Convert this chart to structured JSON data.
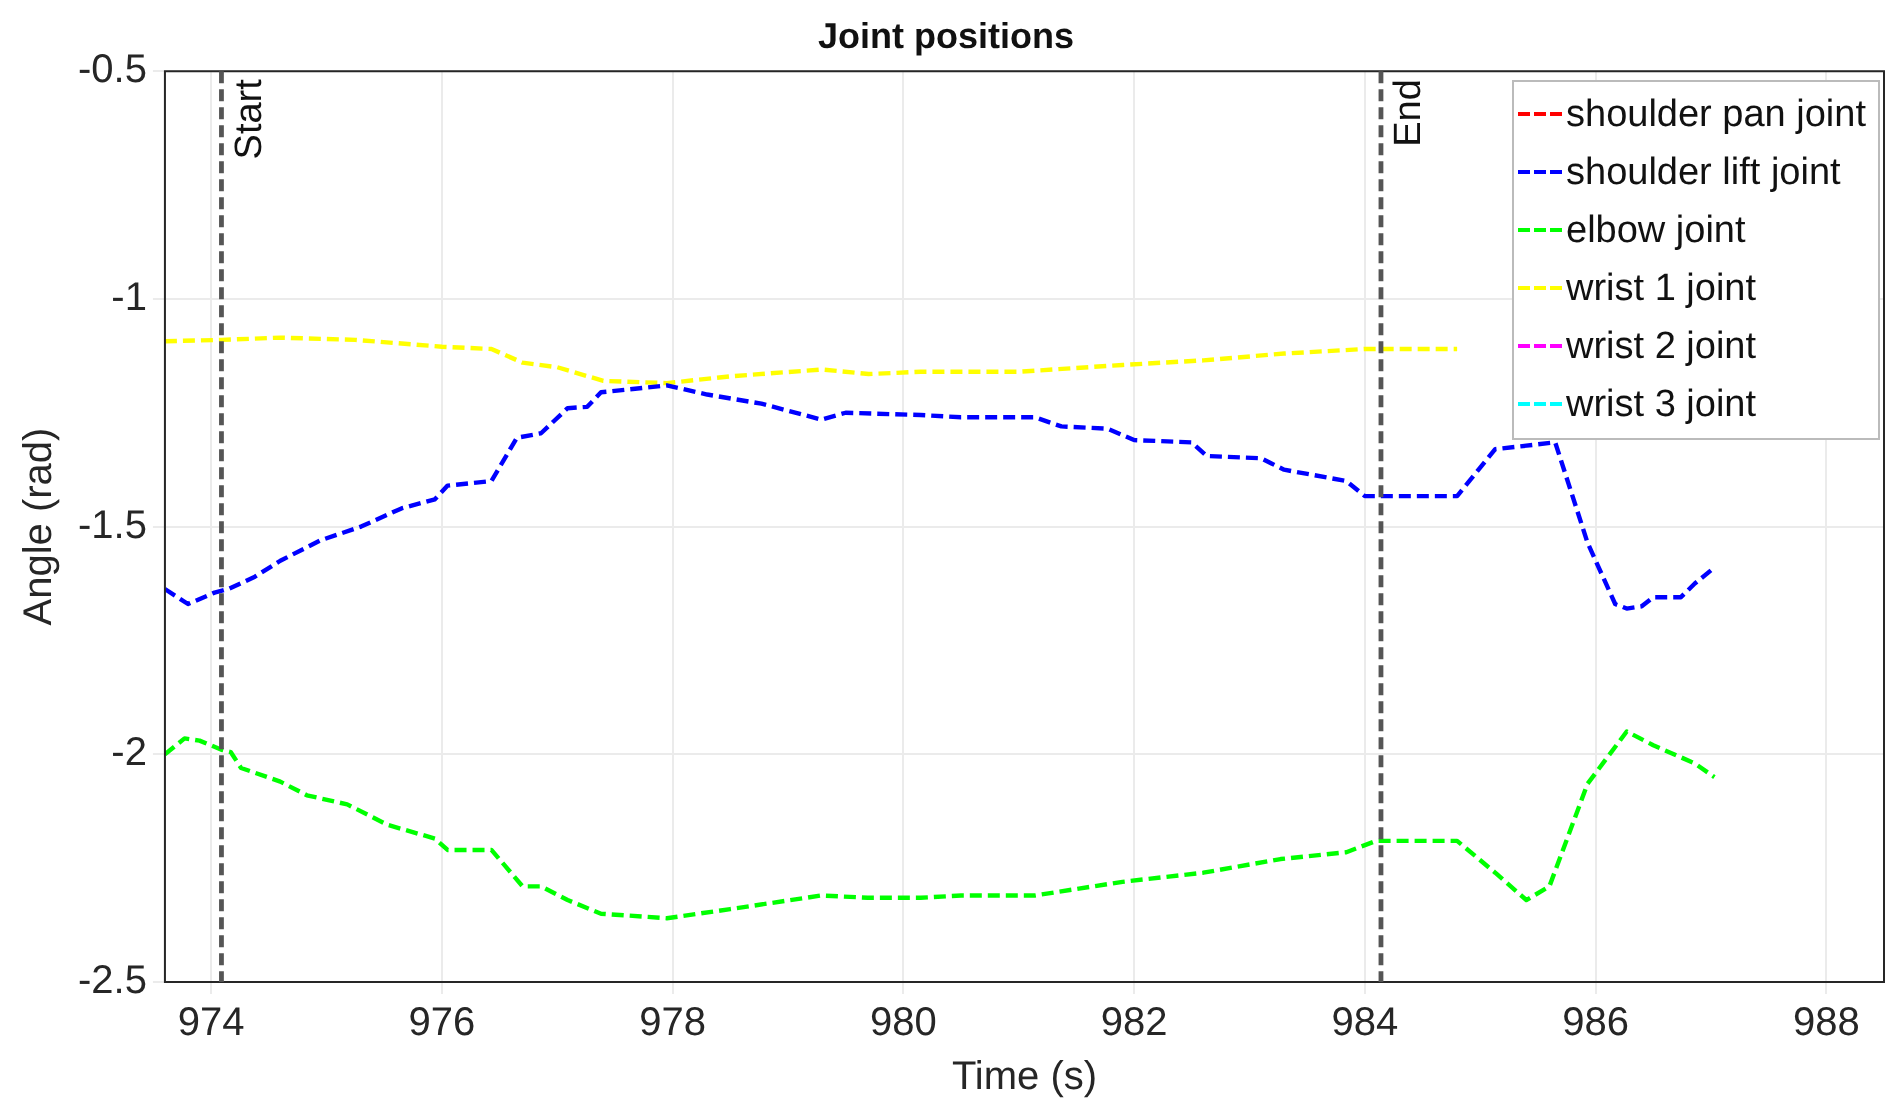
{
  "chart_data": {
    "type": "line",
    "title": "Joint positions",
    "xlabel": "Time (s)",
    "ylabel": "Angle (rad)",
    "xlim": [
      973.6,
      988.5
    ],
    "xticks": [
      974,
      976,
      978,
      980,
      982,
      984,
      986,
      988
    ],
    "ylim": [
      -2.5,
      -0.5
    ],
    "yticks": [
      -2.5,
      -2,
      -1.5,
      -1,
      -0.5
    ],
    "grid": true,
    "legend": "top right",
    "line_style": "dashed",
    "ref_lines": [
      {
        "axis": "x",
        "value": 974.09,
        "label": "Start",
        "color": "#555555",
        "line_style": "dashed"
      },
      {
        "axis": "x",
        "value": 984.14,
        "label": "End",
        "color": "#555555",
        "line_style": "dashed"
      }
    ],
    "series": [
      {
        "name": "shoulder pan joint",
        "color": "#ff0000"
      },
      {
        "name": "shoulder lift joint",
        "color": "#0000ff",
        "x": [
          973.6,
          973.8,
          974.03,
          974.15,
          974.38,
          974.6,
          974.95,
          975.3,
          975.65,
          975.94,
          976.05,
          976.43,
          976.65,
          976.86,
          977.09,
          977.26,
          977.38,
          977.95,
          978.3,
          978.77,
          979.29,
          979.5,
          980.15,
          980.5,
          981.14,
          981.37,
          981.77,
          982.0,
          982.5,
          982.63,
          983.1,
          983.3,
          983.84,
          984.0,
          984.8,
          985.13,
          985.45,
          985.65,
          985.93,
          986.17,
          986.27,
          986.4,
          986.5,
          986.74,
          986.86,
          987.03
        ],
        "values": [
          -1.637,
          -1.67,
          -1.645,
          -1.637,
          -1.61,
          -1.575,
          -1.53,
          -1.5,
          -1.46,
          -1.44,
          -1.41,
          -1.4,
          -1.305,
          -1.295,
          -1.24,
          -1.237,
          -1.205,
          -1.19,
          -1.21,
          -1.23,
          -1.265,
          -1.25,
          -1.255,
          -1.26,
          -1.26,
          -1.28,
          -1.285,
          -1.31,
          -1.315,
          -1.345,
          -1.35,
          -1.375,
          -1.4,
          -1.433,
          -1.433,
          -1.33,
          null,
          -1.315,
          -1.535,
          -1.67,
          -1.68,
          -1.675,
          -1.655,
          -1.655,
          -1.625,
          -1.59
        ]
      },
      {
        "name": "elbow joint",
        "color": "#00ff00",
        "x": [
          973.6,
          973.77,
          973.9,
          974.09,
          974.17,
          974.26,
          974.6,
          974.83,
          975.18,
          975.53,
          975.94,
          976.05,
          976.43,
          976.7,
          976.86,
          977.09,
          977.38,
          977.95,
          978.5,
          979.29,
          979.69,
          980.15,
          980.5,
          981.14,
          981.9,
          982.6,
          983.27,
          983.84,
          984.1,
          984.8,
          985.13,
          985.4,
          985.6,
          985.93,
          986.27,
          986.5,
          986.86,
          987.03
        ],
        "values": [
          -2.0,
          -1.965,
          -1.97,
          -1.99,
          -1.995,
          -2.03,
          -2.06,
          -2.09,
          -2.11,
          -2.155,
          -2.185,
          -2.21,
          -2.21,
          -2.29,
          -2.29,
          -2.32,
          -2.35,
          -2.36,
          -2.34,
          -2.31,
          -2.315,
          -2.315,
          -2.31,
          -2.31,
          -2.28,
          -2.26,
          -2.23,
          -2.215,
          -2.19,
          -2.19,
          -2.26,
          -2.32,
          -2.29,
          -2.065,
          -1.95,
          -1.98,
          -2.02,
          -2.05
        ]
      },
      {
        "name": "wrist 1 joint",
        "color": "#ffff00",
        "x": [
          973.6,
          974.09,
          974.6,
          975.25,
          976.0,
          976.43,
          976.7,
          977.0,
          977.4,
          977.95,
          978.5,
          979.3,
          979.7,
          980.15,
          981.0,
          981.9,
          982.6,
          983.3,
          984.0,
          984.8
        ],
        "values": [
          -1.093,
          -1.09,
          -1.085,
          -1.09,
          -1.105,
          -1.11,
          -1.14,
          -1.15,
          -1.18,
          -1.185,
          -1.17,
          -1.155,
          -1.165,
          -1.16,
          -1.16,
          -1.145,
          -1.135,
          -1.12,
          -1.11,
          -1.11
        ]
      },
      {
        "name": "wrist 2 joint",
        "color": "#ff00ff"
      },
      {
        "name": "wrist 3 joint",
        "color": "#00ffff"
      }
    ]
  }
}
